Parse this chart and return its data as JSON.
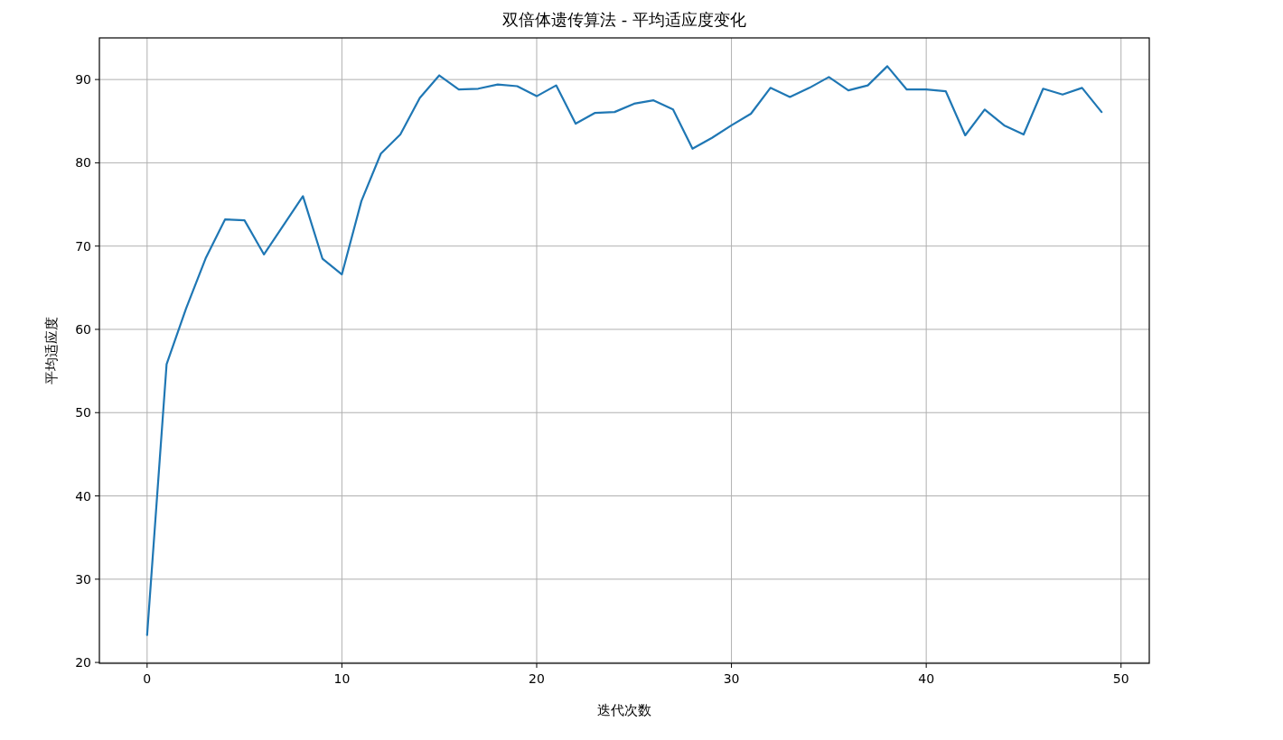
{
  "chart_data": {
    "type": "line",
    "title": "双倍体遗传算法 - 平均适应度变化",
    "xlabel": "迭代次数",
    "ylabel": "平均适应度",
    "x": [
      0,
      1,
      2,
      3,
      4,
      5,
      6,
      7,
      8,
      9,
      10,
      11,
      12,
      13,
      14,
      15,
      16,
      17,
      18,
      19,
      20,
      21,
      22,
      23,
      24,
      25,
      26,
      27,
      28,
      29,
      30,
      31,
      32,
      33,
      34,
      35,
      36,
      37,
      38,
      39,
      40,
      41,
      42,
      43,
      44,
      45,
      46,
      47,
      48,
      49
    ],
    "series": [
      {
        "color": "#1f77b4",
        "values": [
          23.3,
          55.8,
          62.5,
          68.5,
          73.2,
          73.1,
          69.0,
          72.5,
          76.0,
          68.5,
          66.6,
          75.4,
          81.1,
          83.4,
          87.8,
          90.5,
          88.8,
          88.9,
          89.4,
          89.2,
          88.0,
          89.3,
          84.7,
          86.0,
          86.1,
          87.1,
          87.5,
          86.4,
          81.7,
          83.0,
          84.5,
          85.9,
          89.0,
          87.9,
          89.0,
          90.3,
          88.7,
          89.3,
          91.6,
          88.8,
          88.8,
          88.6,
          83.3,
          86.4,
          84.5,
          83.4,
          88.9,
          88.2,
          89.0,
          86.1
        ]
      }
    ],
    "xlim": [
      -2.45,
      51.45
    ],
    "ylim": [
      19.9,
      95.0
    ],
    "xticks": [
      0,
      10,
      20,
      30,
      40,
      50
    ],
    "yticks": [
      20,
      30,
      40,
      50,
      60,
      70,
      80,
      90
    ],
    "grid": true
  }
}
